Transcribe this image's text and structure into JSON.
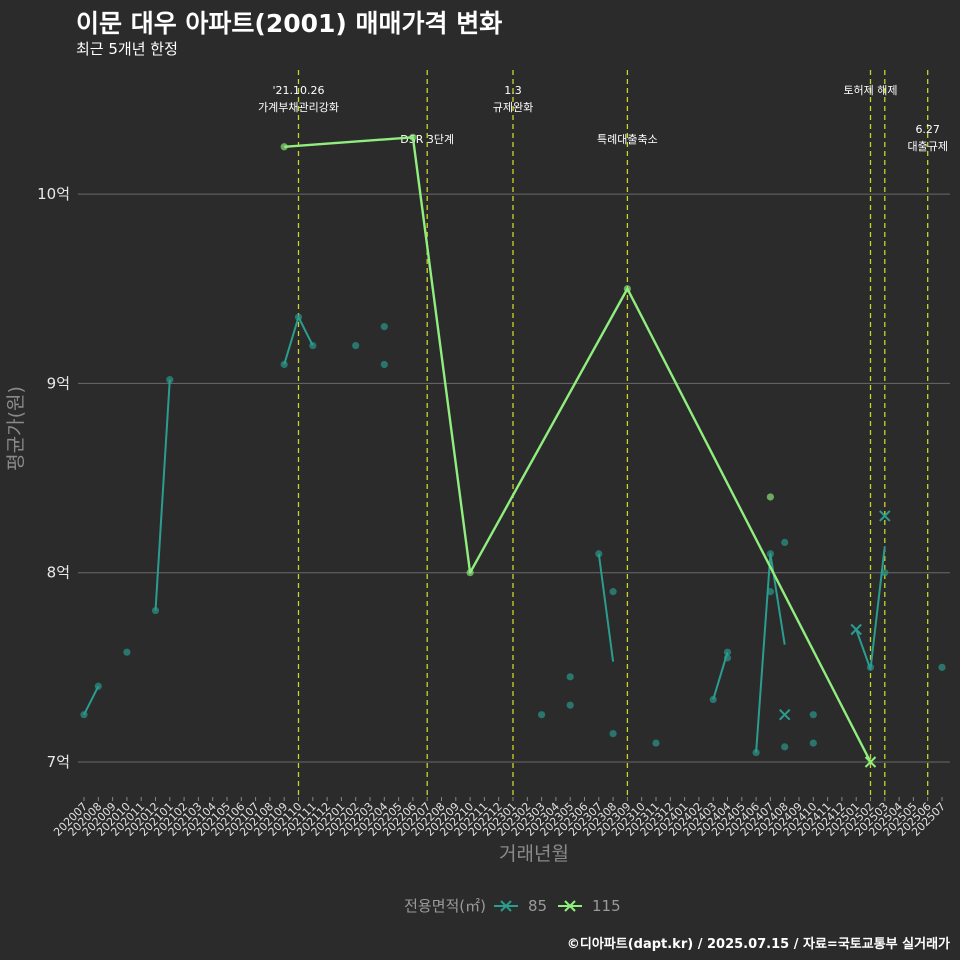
{
  "header": {
    "title": "이문 대우 아파트(2001) 매매가격 변화",
    "subtitle": "최근 5개년 한정"
  },
  "caption": "©디아파트(dapt.kr) / 2025.07.15 / 자료=국토교통부 실거래가",
  "chart_data": {
    "type": "line",
    "title": "이문 대우 아파트(2001) 매매가격 변화",
    "subtitle": "최근 5개년 한정",
    "xlabel": "거래년월",
    "ylabel": "평균가(원)",
    "ylim": [
      6.85,
      10.8
    ],
    "yticks": [
      {
        "value": 7,
        "label": "7억"
      },
      {
        "value": 8,
        "label": "8억"
      },
      {
        "value": 9,
        "label": "9억"
      },
      {
        "value": 10,
        "label": "10억"
      }
    ],
    "categories": [
      "202007",
      "202008",
      "202009",
      "202010",
      "202011",
      "202012",
      "202101",
      "202102",
      "202103",
      "202104",
      "202105",
      "202106",
      "202107",
      "202108",
      "202109",
      "202110",
      "202111",
      "202112",
      "202201",
      "202202",
      "202203",
      "202204",
      "202205",
      "202206",
      "202207",
      "202208",
      "202209",
      "202210",
      "202211",
      "202212",
      "202301",
      "202302",
      "202303",
      "202304",
      "202305",
      "202306",
      "202307",
      "202308",
      "202309",
      "202310",
      "202311",
      "202312",
      "202401",
      "202402",
      "202403",
      "202404",
      "202405",
      "202406",
      "202407",
      "202408",
      "202409",
      "202410",
      "202411",
      "202412",
      "202501",
      "202502",
      "202503",
      "202504",
      "202505",
      "202506",
      "202507"
    ],
    "legend": {
      "title": "전용면적(㎡)",
      "position": "bottom"
    },
    "series": [
      {
        "name": "85",
        "color": "#2a9d8f",
        "lines": [
          [
            [
              "202007",
              7.25
            ],
            [
              "202008",
              7.4
            ]
          ],
          [
            [
              "202012",
              7.8
            ],
            [
              "202101",
              9.02
            ]
          ],
          [
            [
              "202109",
              9.1
            ],
            [
              "202110",
              9.35
            ],
            [
              "202111",
              9.2
            ]
          ],
          [
            [
              "202307",
              8.1
            ],
            [
              "202308",
              7.53
            ]
          ],
          [
            [
              "202403",
              7.33
            ],
            [
              "202404",
              7.58
            ]
          ],
          [
            [
              "202406",
              7.05
            ],
            [
              "202407",
              8.1
            ],
            [
              "202408",
              7.62
            ]
          ],
          [
            [
              "202501",
              7.7
            ],
            [
              "202502",
              7.49
            ],
            [
              "202503",
              8.14
            ]
          ]
        ],
        "points": [
          [
            "202007",
            7.25
          ],
          [
            "202008",
            7.4
          ],
          [
            "202010",
            7.58
          ],
          [
            "202012",
            7.8
          ],
          [
            "202101",
            9.02
          ],
          [
            "202109",
            9.1
          ],
          [
            "202110",
            9.35
          ],
          [
            "202111",
            9.2
          ],
          [
            "202202",
            9.2
          ],
          [
            "202204",
            9.3
          ],
          [
            "202204",
            9.1
          ],
          [
            "202303",
            7.25
          ],
          [
            "202305",
            7.45
          ],
          [
            "202305",
            7.3
          ],
          [
            "202307",
            8.1
          ],
          [
            "202308",
            7.9
          ],
          [
            "202308",
            7.15
          ],
          [
            "202311",
            7.1
          ],
          [
            "202403",
            7.33
          ],
          [
            "202404",
            7.58
          ],
          [
            "202404",
            7.55
          ],
          [
            "202406",
            7.05
          ],
          [
            "202407",
            8.1
          ],
          [
            "202407",
            7.9
          ],
          [
            "202408",
            8.16
          ],
          [
            "202408",
            7.08
          ],
          [
            "202410",
            7.25
          ],
          [
            "202410",
            7.1
          ],
          [
            "202502",
            7.5
          ],
          [
            "202503",
            8.0
          ],
          [
            "202507",
            7.5
          ]
        ],
        "markers_x": [
          [
            "202408",
            7.25
          ],
          [
            "202501",
            7.7
          ],
          [
            "202503",
            8.3
          ]
        ]
      },
      {
        "name": "115",
        "color": "#90ee7e",
        "lines": [
          [
            [
              "202109",
              10.25
            ],
            [
              "202206",
              10.3
            ],
            [
              "202210",
              8.0
            ],
            [
              "202309",
              9.5
            ],
            [
              "202502",
              7.0
            ]
          ]
        ],
        "points": [
          [
            "202109",
            10.25
          ],
          [
            "202206",
            10.3
          ],
          [
            "202210",
            8.0
          ],
          [
            "202309",
            9.5
          ],
          [
            "202407",
            8.4
          ]
        ],
        "markers_x": [
          [
            "202502",
            7.0
          ]
        ]
      }
    ],
    "events": [
      {
        "x": "202110",
        "label": [
          "'21.10.26",
          "가계부채관리강화"
        ],
        "level": 0
      },
      {
        "x": "202207",
        "label": [
          "DSR 3단계"
        ],
        "level": 1
      },
      {
        "x": "202301",
        "label": [
          "1.3",
          "규제완화"
        ],
        "level": 0
      },
      {
        "x": "202309",
        "label": [
          "특례대출축소"
        ],
        "level": 1
      },
      {
        "x": "202502",
        "label": [
          "토허제 해제"
        ],
        "level": 0
      },
      {
        "x": "202503",
        "label": [],
        "level": 0
      },
      {
        "x": "202506",
        "label": [
          "6.27",
          "대출규제"
        ],
        "level": 2
      }
    ],
    "event_line_color": "#c8d62a"
  }
}
